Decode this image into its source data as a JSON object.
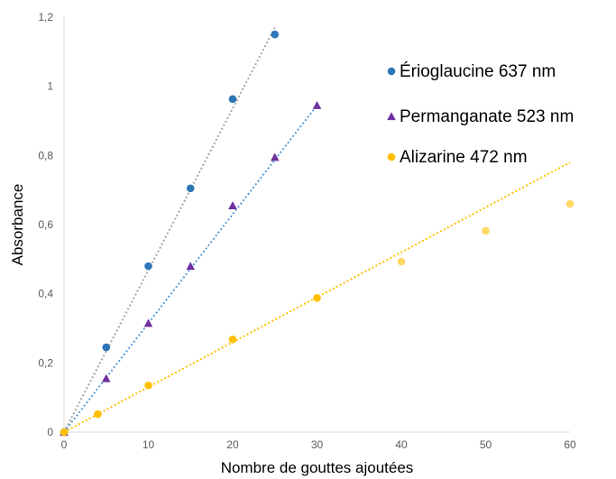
{
  "chart_data": {
    "type": "scatter",
    "title": "",
    "xlabel": "Nombre de gouttes ajoutées",
    "ylabel": "Absorbance",
    "xlim": [
      0,
      60
    ],
    "ylim": [
      0,
      1.2
    ],
    "x_ticks": [
      {
        "value": 0,
        "label": "0"
      },
      {
        "value": 10,
        "label": "10"
      },
      {
        "value": 20,
        "label": "20"
      },
      {
        "value": 30,
        "label": "30"
      },
      {
        "value": 40,
        "label": "40"
      },
      {
        "value": 50,
        "label": "50"
      },
      {
        "value": 60,
        "label": "60"
      }
    ],
    "y_ticks": [
      {
        "value": 0,
        "label": "0"
      },
      {
        "value": 0.2,
        "label": "0,2"
      },
      {
        "value": 0.4,
        "label": "0,4"
      },
      {
        "value": 0.6,
        "label": "0,6"
      },
      {
        "value": 0.8,
        "label": "0,8"
      },
      {
        "value": 1.0,
        "label": "1"
      },
      {
        "value": 1.2,
        "label": "1,2"
      }
    ],
    "grid": false,
    "legend_position": "top-right",
    "series": [
      {
        "name": "Érioglaucine 637 nm",
        "marker": "circle",
        "color": "#2e75b6",
        "trendline_color": "#a6a6a6",
        "trendline_x": [
          0,
          25
        ],
        "trendline_y": [
          0,
          1.17
        ],
        "points": [
          {
            "x": 0,
            "y": 0
          },
          {
            "x": 5,
            "y": 0.245
          },
          {
            "x": 10,
            "y": 0.48
          },
          {
            "x": 15,
            "y": 0.705
          },
          {
            "x": 20,
            "y": 0.963
          },
          {
            "x": 25,
            "y": 1.15
          }
        ]
      },
      {
        "name": "Permanganate 523 nm",
        "marker": "triangle",
        "color": "#7030a0",
        "trendline_color": "#5b9bd5",
        "trendline_x": [
          0,
          30
        ],
        "trendline_y": [
          0,
          0.945
        ],
        "points": [
          {
            "x": 0,
            "y": 0
          },
          {
            "x": 5,
            "y": 0.155
          },
          {
            "x": 10,
            "y": 0.315
          },
          {
            "x": 15,
            "y": 0.48
          },
          {
            "x": 20,
            "y": 0.655
          },
          {
            "x": 25,
            "y": 0.795
          },
          {
            "x": 30,
            "y": 0.945
          }
        ]
      },
      {
        "name": "Alizarine 472 nm",
        "marker": "circle",
        "color": "#ffc000",
        "trendline_color": "#ffc000",
        "trendline_x": [
          0,
          60
        ],
        "trendline_y": [
          0,
          0.78
        ],
        "points": [
          {
            "x": 0,
            "y": 0,
            "color": "#ffc000"
          },
          {
            "x": 4,
            "y": 0.052,
            "color": "#ffc000"
          },
          {
            "x": 10,
            "y": 0.135,
            "color": "#ffc000"
          },
          {
            "x": 20,
            "y": 0.268,
            "color": "#ffc000"
          },
          {
            "x": 30,
            "y": 0.388,
            "color": "#ffc000"
          },
          {
            "x": 40,
            "y": 0.493,
            "color": "#ffd966"
          },
          {
            "x": 50,
            "y": 0.582,
            "color": "#ffd966"
          },
          {
            "x": 60,
            "y": 0.66,
            "color": "#ffd966"
          }
        ]
      }
    ]
  }
}
